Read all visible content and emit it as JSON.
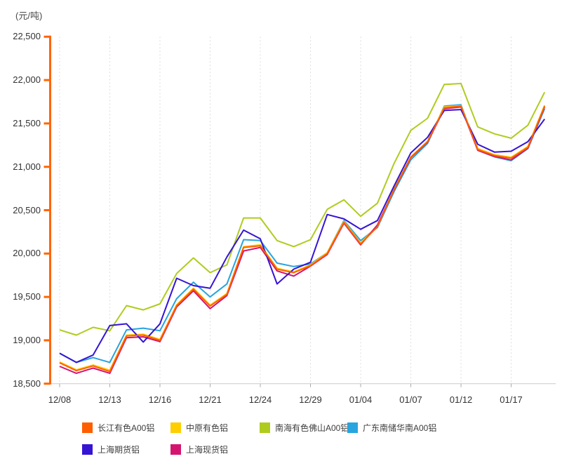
{
  "page": {
    "background": "#ffffff"
  },
  "chart_data": {
    "type": "line",
    "unit_label": "(元/吨)",
    "y_min": 18500,
    "y_max": 22500,
    "y_tick_step": 500,
    "y_ticks": [
      "18,500",
      "19,000",
      "19,500",
      "20,000",
      "20,500",
      "21,000",
      "21,500",
      "22,000",
      "22,500"
    ],
    "x_labels": [
      "12/08",
      "12/13",
      "12/16",
      "12/21",
      "12/24",
      "12/29",
      "01/04",
      "01/07",
      "01/12",
      "01/17"
    ],
    "x_label_indices": [
      0,
      3,
      6,
      9,
      12,
      15,
      18,
      21,
      24,
      27
    ],
    "n_points": 30,
    "grid": "vertical-dashed",
    "legend_position": "bottom",
    "axis_color": "#FF6600",
    "grid_color": "#DDDDDD",
    "x_axis_color": "#CCCCCC",
    "series": [
      {
        "name": "长江有色A00铝",
        "color": "#FF5E00",
        "values": [
          18740,
          18650,
          18705,
          18640,
          19050,
          19060,
          19000,
          19400,
          19590,
          19395,
          19530,
          20070,
          20090,
          19820,
          19780,
          19860,
          20000,
          20360,
          20110,
          20310,
          20740,
          21110,
          21290,
          21680,
          21700,
          21200,
          21130,
          21100,
          21225,
          21700
        ]
      },
      {
        "name": "中原有色铝",
        "color": "#FFCE00",
        "values": [
          18750,
          18660,
          18715,
          18655,
          19060,
          19070,
          19010,
          19410,
          19600,
          19405,
          19540,
          20080,
          20100,
          19830,
          19790,
          19870,
          20010,
          20370,
          20120,
          20320,
          20745,
          21115,
          21295,
          21690,
          21705,
          21210,
          21140,
          21110,
          21235,
          21710
        ]
      },
      {
        "name": "南海有色佛山A00铝",
        "color": "#AFCC1E",
        "values": [
          19120,
          19060,
          19150,
          19110,
          19400,
          19350,
          19420,
          19770,
          19950,
          19780,
          19870,
          20410,
          20410,
          20150,
          20080,
          20160,
          20510,
          20620,
          20430,
          20580,
          21040,
          21420,
          21560,
          21950,
          21960,
          21460,
          21380,
          21330,
          21480,
          21860
        ]
      },
      {
        "name": "广东南储华南A00铝",
        "color": "#28A4DE",
        "values": [
          18850,
          18745,
          18800,
          18745,
          19120,
          19140,
          19110,
          19480,
          19670,
          19500,
          19650,
          20160,
          20150,
          19890,
          19850,
          19880,
          20010,
          20380,
          20150,
          20300,
          20715,
          21080,
          21270,
          21700,
          21715,
          21190,
          21115,
          21070,
          21210,
          21670
        ]
      },
      {
        "name": "上海期货铝",
        "color": "#3614D4",
        "values": [
          18850,
          18745,
          18830,
          19170,
          19190,
          18980,
          19190,
          19715,
          19630,
          19600,
          19960,
          20270,
          20170,
          19650,
          19820,
          19900,
          20450,
          20400,
          20280,
          20380,
          20780,
          21160,
          21340,
          21650,
          21660,
          21260,
          21170,
          21180,
          21290,
          21550
        ]
      },
      {
        "name": "上海现货铝",
        "color": "#D4156F",
        "values": [
          18700,
          18620,
          18680,
          18620,
          19030,
          19040,
          18985,
          19385,
          19570,
          19365,
          19515,
          20030,
          20070,
          19800,
          19740,
          19855,
          19990,
          20350,
          20100,
          20330,
          20735,
          21105,
          21285,
          21670,
          21690,
          21190,
          21120,
          21080,
          21215,
          21690
        ]
      }
    ]
  }
}
